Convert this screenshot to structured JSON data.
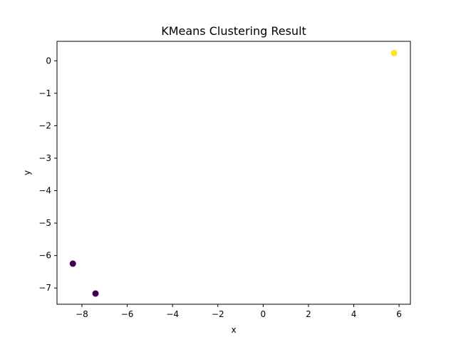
{
  "chart_data": {
    "type": "scatter",
    "title": "KMeans Clustering Result",
    "xlabel": "x",
    "ylabel": "y",
    "xlim": [
      -9.1,
      6.5
    ],
    "ylim": [
      -7.5,
      0.6
    ],
    "xticks": [
      -8,
      -6,
      -4,
      -2,
      0,
      2,
      4,
      6
    ],
    "yticks": [
      0,
      -1,
      -2,
      -3,
      -4,
      -5,
      -6,
      -7
    ],
    "grid": false,
    "legend": "none",
    "colors": {
      "cluster_0": "#440154",
      "cluster_1": "#fde725"
    },
    "points": [
      {
        "x": 5.78,
        "y": 0.24,
        "cluster": 1
      },
      {
        "x": -8.4,
        "y": -6.25,
        "cluster": 0
      },
      {
        "x": -7.4,
        "y": -7.17,
        "cluster": 0
      }
    ]
  }
}
